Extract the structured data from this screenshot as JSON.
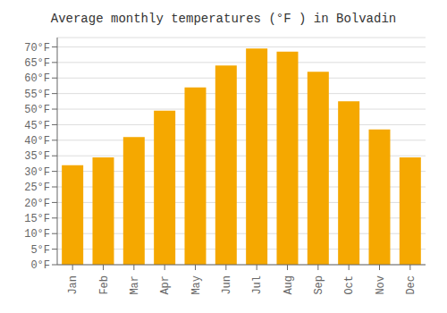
{
  "chart_data": {
    "type": "bar",
    "title": "Average monthly temperatures (°F ) in Bolvadin",
    "categories": [
      "Jan",
      "Feb",
      "Mar",
      "Apr",
      "May",
      "Jun",
      "Jul",
      "Aug",
      "Sep",
      "Oct",
      "Nov",
      "Dec"
    ],
    "values": [
      32,
      34.5,
      41,
      49.5,
      57,
      64,
      69.5,
      68.5,
      62,
      52.5,
      43.5,
      34.5
    ],
    "color": "#F5A800",
    "ylim": [
      0,
      73
    ],
    "yticks": [
      {
        "value": 0,
        "label": "0°F"
      },
      {
        "value": 5,
        "label": "5°F"
      },
      {
        "value": 10,
        "label": "10°F"
      },
      {
        "value": 15,
        "label": "15°F"
      },
      {
        "value": 20,
        "label": "20°F"
      },
      {
        "value": 25,
        "label": "25°F"
      },
      {
        "value": 30,
        "label": "30°F"
      },
      {
        "value": 35,
        "label": "35°F"
      },
      {
        "value": 40,
        "label": "40°F"
      },
      {
        "value": 45,
        "label": "45°F"
      },
      {
        "value": 50,
        "label": "50°F"
      },
      {
        "value": 55,
        "label": "55°F"
      },
      {
        "value": 60,
        "label": "60°F"
      },
      {
        "value": 65,
        "label": "65°F"
      },
      {
        "value": 70,
        "label": "70°F"
      }
    ],
    "grid": true
  }
}
